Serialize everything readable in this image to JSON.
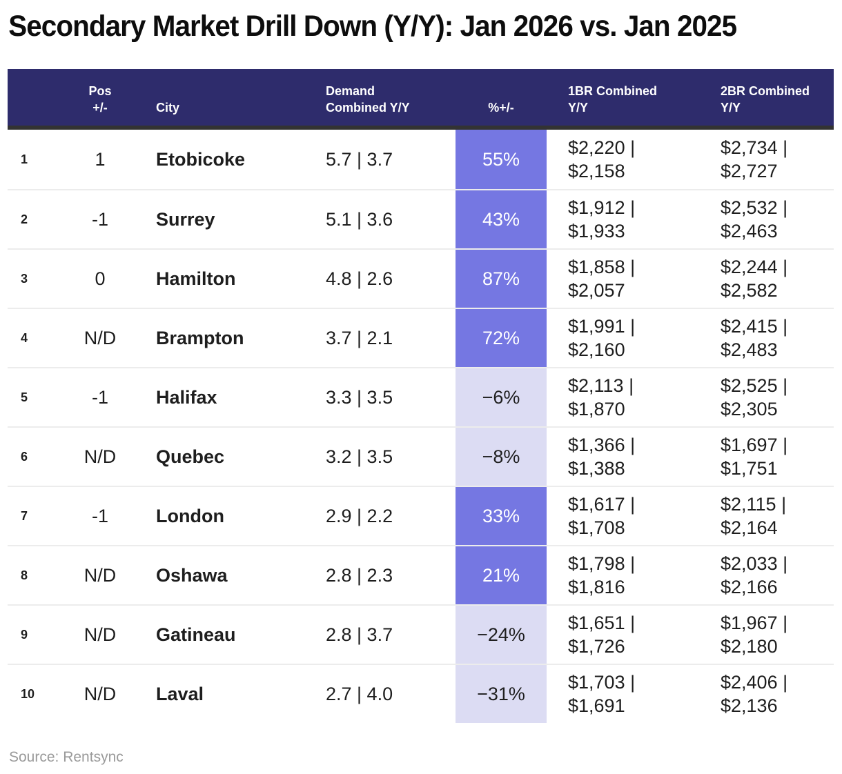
{
  "title": "Secondary Market Drill Down (Y/Y): Jan 2026 vs. Jan 2025",
  "source": "Source: Rentsync",
  "colors": {
    "header_bg": "#2e2c6c",
    "header_rule": "#333333",
    "positive_bg": "#7577e2",
    "positive_text": "#ffffff",
    "negative_bg": "#dcdcf3",
    "negative_text": "#1f1f1f"
  },
  "table": {
    "headers": {
      "pos_line1": "Pos",
      "pos_line2": "+/-",
      "city": "City",
      "demand_line1": "Demand",
      "demand_line2": "Combined Y/Y",
      "pct": "%+/-",
      "br1_line1": "1BR Combined",
      "br1_line2": "Y/Y",
      "br2_line1": "2BR Combined",
      "br2_line2": "Y/Y"
    },
    "rows": [
      {
        "num": "1",
        "pos": "1",
        "city": "Etobicoke",
        "demand": "5.7 | 3.7",
        "pct": "55%",
        "trend": "up",
        "br1_top": "$2,220 |",
        "br1_bottom": "$2,158",
        "br2_top": "$2,734 |",
        "br2_bottom": "$2,727"
      },
      {
        "num": "2",
        "pos": "-1",
        "city": "Surrey",
        "demand": "5.1 | 3.6",
        "pct": "43%",
        "trend": "up",
        "br1_top": "$1,912 |",
        "br1_bottom": "$1,933",
        "br2_top": "$2,532 |",
        "br2_bottom": "$2,463"
      },
      {
        "num": "3",
        "pos": "0",
        "city": "Hamilton",
        "demand": "4.8 | 2.6",
        "pct": "87%",
        "trend": "up",
        "br1_top": "$1,858 |",
        "br1_bottom": "$2,057",
        "br2_top": "$2,244 |",
        "br2_bottom": "$2,582"
      },
      {
        "num": "4",
        "pos": "N/D",
        "city": "Brampton",
        "demand": "3.7 | 2.1",
        "pct": "72%",
        "trend": "up",
        "br1_top": "$1,991 |",
        "br1_bottom": "$2,160",
        "br2_top": "$2,415 |",
        "br2_bottom": "$2,483"
      },
      {
        "num": "5",
        "pos": "-1",
        "city": "Halifax",
        "demand": "3.3 | 3.5",
        "pct": "−6%",
        "trend": "down",
        "br1_top": "$2,113 |",
        "br1_bottom": "$1,870",
        "br2_top": "$2,525 |",
        "br2_bottom": "$2,305"
      },
      {
        "num": "6",
        "pos": "N/D",
        "city": "Quebec",
        "demand": "3.2 | 3.5",
        "pct": "−8%",
        "trend": "down",
        "br1_top": "$1,366 |",
        "br1_bottom": "$1,388",
        "br2_top": "$1,697 |",
        "br2_bottom": "$1,751"
      },
      {
        "num": "7",
        "pos": "-1",
        "city": "London",
        "demand": "2.9 | 2.2",
        "pct": "33%",
        "trend": "up",
        "br1_top": "$1,617 |",
        "br1_bottom": "$1,708",
        "br2_top": "$2,115 |",
        "br2_bottom": "$2,164"
      },
      {
        "num": "8",
        "pos": "N/D",
        "city": "Oshawa",
        "demand": "2.8 | 2.3",
        "pct": "21%",
        "trend": "up",
        "br1_top": "$1,798 |",
        "br1_bottom": "$1,816",
        "br2_top": "$2,033 |",
        "br2_bottom": "$2,166"
      },
      {
        "num": "9",
        "pos": "N/D",
        "city": "Gatineau",
        "demand": "2.8 | 3.7",
        "pct": "−24%",
        "trend": "down",
        "br1_top": "$1,651 |",
        "br1_bottom": "$1,726",
        "br2_top": "$1,967 |",
        "br2_bottom": "$2,180"
      },
      {
        "num": "10",
        "pos": "N/D",
        "city": "Laval",
        "demand": "2.7 | 4.0",
        "pct": "−31%",
        "trend": "down",
        "br1_top": "$1,703 |",
        "br1_bottom": "$1,691",
        "br2_top": "$2,406 |",
        "br2_bottom": "$2,136"
      }
    ]
  },
  "chart_data": {
    "type": "table",
    "title": "Secondary Market Drill Down (Y/Y): Jan 2026 vs. Jan 2025",
    "columns": [
      "Pos +/-",
      "City",
      "Demand Combined Y/Y",
      "%+/-",
      "1BR Combined Y/Y",
      "2BR Combined Y/Y"
    ],
    "rows": [
      {
        "rank": 1,
        "pos_change": "1",
        "city": "Etobicoke",
        "demand_yy": [
          5.7,
          3.7
        ],
        "pct_change": 55,
        "br1_yy": [
          2220,
          2158
        ],
        "br2_yy": [
          2734,
          2727
        ]
      },
      {
        "rank": 2,
        "pos_change": "-1",
        "city": "Surrey",
        "demand_yy": [
          5.1,
          3.6
        ],
        "pct_change": 43,
        "br1_yy": [
          1912,
          1933
        ],
        "br2_yy": [
          2532,
          2463
        ]
      },
      {
        "rank": 3,
        "pos_change": "0",
        "city": "Hamilton",
        "demand_yy": [
          4.8,
          2.6
        ],
        "pct_change": 87,
        "br1_yy": [
          1858,
          2057
        ],
        "br2_yy": [
          2244,
          2582
        ]
      },
      {
        "rank": 4,
        "pos_change": "N/D",
        "city": "Brampton",
        "demand_yy": [
          3.7,
          2.1
        ],
        "pct_change": 72,
        "br1_yy": [
          1991,
          2160
        ],
        "br2_yy": [
          2415,
          2483
        ]
      },
      {
        "rank": 5,
        "pos_change": "-1",
        "city": "Halifax",
        "demand_yy": [
          3.3,
          3.5
        ],
        "pct_change": -6,
        "br1_yy": [
          2113,
          1870
        ],
        "br2_yy": [
          2525,
          2305
        ]
      },
      {
        "rank": 6,
        "pos_change": "N/D",
        "city": "Quebec",
        "demand_yy": [
          3.2,
          3.5
        ],
        "pct_change": -8,
        "br1_yy": [
          1366,
          1388
        ],
        "br2_yy": [
          1697,
          1751
        ]
      },
      {
        "rank": 7,
        "pos_change": "-1",
        "city": "London",
        "demand_yy": [
          2.9,
          2.2
        ],
        "pct_change": 33,
        "br1_yy": [
          1617,
          1708
        ],
        "br2_yy": [
          2115,
          2164
        ]
      },
      {
        "rank": 8,
        "pos_change": "N/D",
        "city": "Oshawa",
        "demand_yy": [
          2.8,
          2.3
        ],
        "pct_change": 21,
        "br1_yy": [
          1798,
          1816
        ],
        "br2_yy": [
          2033,
          2166
        ]
      },
      {
        "rank": 9,
        "pos_change": "N/D",
        "city": "Gatineau",
        "demand_yy": [
          2.8,
          3.7
        ],
        "pct_change": -24,
        "br1_yy": [
          1651,
          1726
        ],
        "br2_yy": [
          1967,
          2180
        ]
      },
      {
        "rank": 10,
        "pos_change": "N/D",
        "city": "Laval",
        "demand_yy": [
          2.7,
          4.0
        ],
        "pct_change": -31,
        "br1_yy": [
          1703,
          1691
        ],
        "br2_yy": [
          2406,
          2136
        ]
      }
    ]
  }
}
